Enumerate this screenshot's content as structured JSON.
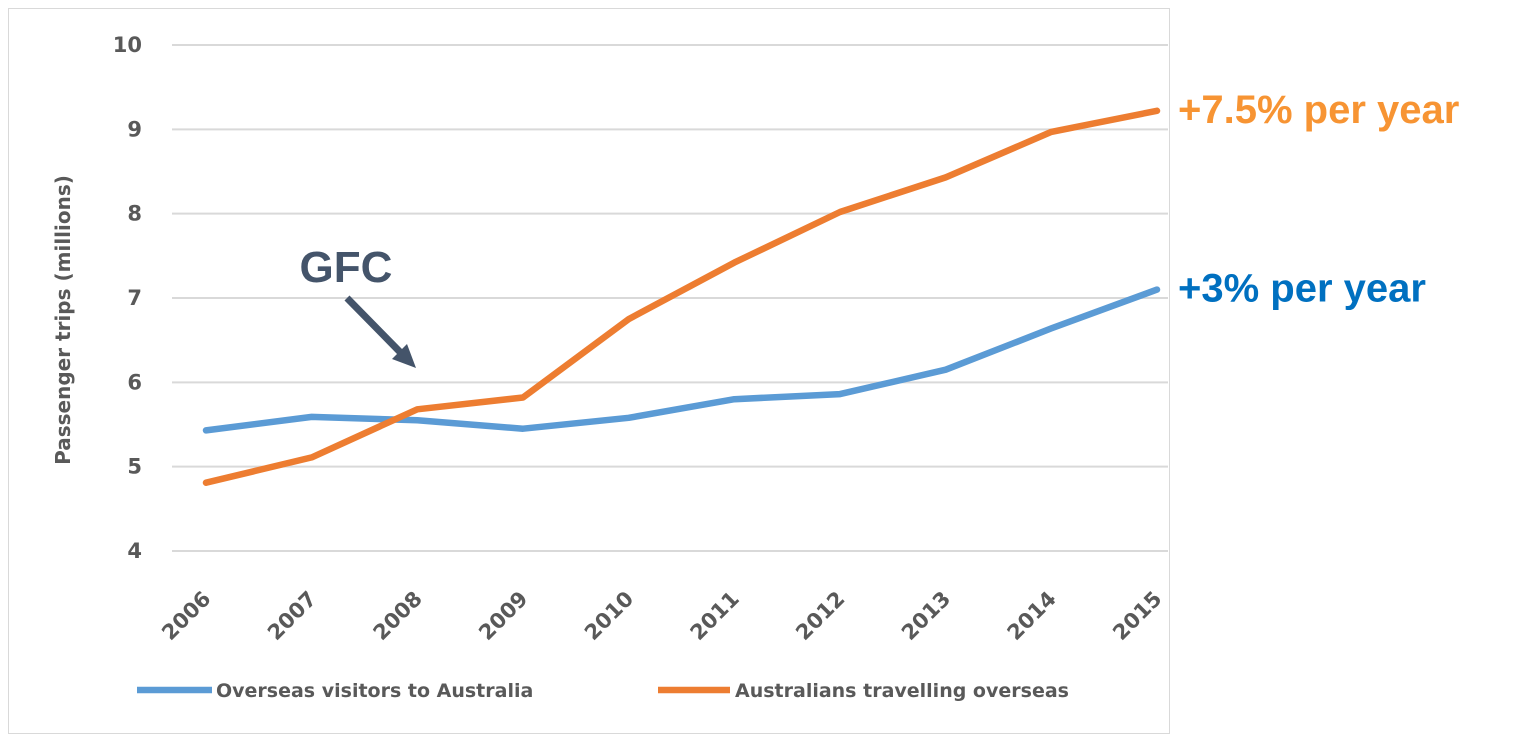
{
  "chart_data": {
    "type": "line",
    "categories": [
      "2006",
      "2007",
      "2008",
      "2009",
      "2010",
      "2011",
      "2012",
      "2013",
      "2014",
      "2015"
    ],
    "series": [
      {
        "name": "Overseas visitors to Australia",
        "color": "#5b9bd5",
        "values": [
          5.43,
          5.59,
          5.55,
          5.45,
          5.58,
          5.8,
          5.86,
          6.15,
          6.64,
          7.1
        ],
        "growth_label": "+3% per year",
        "growth_color": "#0070c0"
      },
      {
        "name": "Australians travelling overseas",
        "color": "#ed7d31",
        "values": [
          4.81,
          5.11,
          5.68,
          5.82,
          6.75,
          7.42,
          8.02,
          8.43,
          8.97,
          9.22
        ],
        "growth_label": "+7.5% per year",
        "growth_color": "#f79433"
      }
    ],
    "ylabel": "Passenger trips (millions)",
    "xlabel": "",
    "ylim": [
      4,
      10
    ],
    "yticks": [
      "4",
      "5",
      "6",
      "7",
      "8",
      "9",
      "10"
    ],
    "grid": true,
    "legend_position": "bottom",
    "annotation": {
      "text": "GFC",
      "target": "2008"
    }
  }
}
